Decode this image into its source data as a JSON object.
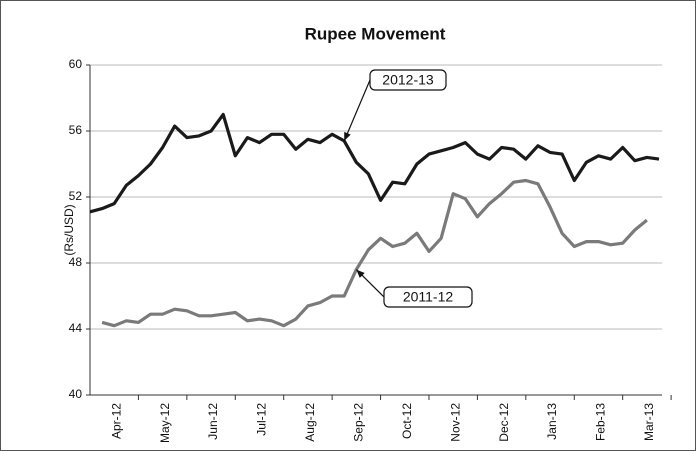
{
  "chart_data": {
    "type": "line",
    "title": "Rupee Movement",
    "y_label": "(Rs/USD)",
    "categories": [
      null,
      null,
      "Apr-12",
      null,
      null,
      null,
      "May-12",
      null,
      null,
      null,
      "Jun-12",
      null,
      null,
      null,
      "Jul-12",
      null,
      null,
      null,
      "Aug-12",
      null,
      null,
      null,
      "Sep-12",
      null,
      null,
      null,
      "Oct-12",
      null,
      null,
      null,
      "Nov-12",
      null,
      null,
      null,
      "Dec-12",
      null,
      null,
      null,
      "Jan-13",
      null,
      null,
      null,
      "Feb-13",
      null,
      null,
      null,
      "Mar-13",
      null
    ],
    "series": [
      {
        "name": "2012-13",
        "color": "#1a1a1a",
        "values": [
          51.1,
          51.3,
          51.6,
          52.7,
          53.3,
          54.0,
          55.0,
          56.3,
          55.6,
          55.7,
          56.0,
          57.0,
          54.5,
          55.6,
          55.3,
          55.8,
          55.8,
          54.9,
          55.5,
          55.3,
          55.8,
          55.4,
          54.1,
          53.4,
          51.8,
          52.9,
          52.8,
          54.0,
          54.6,
          54.8,
          55.0,
          55.3,
          54.6,
          54.3,
          55.0,
          54.9,
          54.3,
          55.1,
          54.7,
          54.6,
          53.0,
          54.1,
          54.5,
          54.3,
          55.0,
          54.2,
          54.4,
          54.3
        ]
      },
      {
        "name": "2011-12",
        "color": "#7a7a7a",
        "values": [
          null,
          44.4,
          44.2,
          44.5,
          44.4,
          44.9,
          44.9,
          45.2,
          45.1,
          44.8,
          44.8,
          44.9,
          45.0,
          44.5,
          44.6,
          44.5,
          44.2,
          44.6,
          45.4,
          45.6,
          46.0,
          46.0,
          47.6,
          48.8,
          49.5,
          49.0,
          49.2,
          49.8,
          48.7,
          49.5,
          52.2,
          51.9,
          50.8,
          51.6,
          52.2,
          52.9,
          53.0,
          52.8,
          51.4,
          49.8,
          49.0,
          49.3,
          49.3,
          49.1,
          49.2,
          50.0,
          50.6,
          null
        ]
      }
    ],
    "ylim": [
      40,
      60
    ],
    "yticks": [
      40,
      44,
      48,
      52,
      56,
      60
    ],
    "grid": true
  }
}
